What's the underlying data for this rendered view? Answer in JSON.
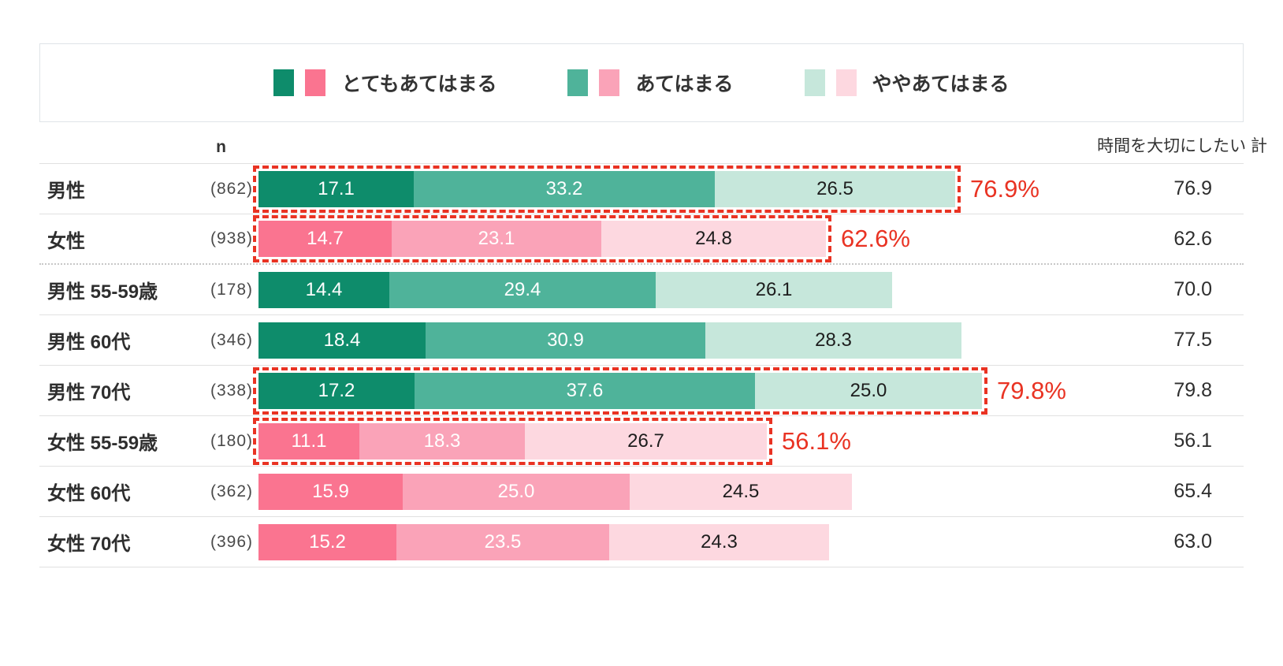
{
  "colors": {
    "green": [
      "#0E8C6B",
      "#4FB39A",
      "#C6E7DB"
    ],
    "pink": [
      "#FA7490",
      "#FAA3B8",
      "#FDD8E0"
    ],
    "highlight_red": "#E93323"
  },
  "legend": {
    "items": [
      {
        "label": "とてもあてはまる"
      },
      {
        "label": "あてはまる"
      },
      {
        "label": "ややあてはまる"
      }
    ]
  },
  "table": {
    "n_header": "n",
    "total_header": "時間を大切にしたい 計",
    "rows": [
      {
        "label": "男性",
        "n": "(862)",
        "palette": "green",
        "values": [
          17.1,
          33.2,
          26.5
        ],
        "total": 76.9,
        "highlight_label": "76.9%"
      },
      {
        "label": "女性",
        "n": "(938)",
        "palette": "pink",
        "values": [
          14.7,
          23.1,
          24.8
        ],
        "total": 62.6,
        "highlight_label": "62.6%"
      },
      {
        "label": "男性 55-59歳",
        "n": "(178)",
        "palette": "green",
        "values": [
          14.4,
          29.4,
          26.1
        ],
        "total": 70.0,
        "highlight_label": null
      },
      {
        "label": "男性 60代",
        "n": "(346)",
        "palette": "green",
        "values": [
          18.4,
          30.9,
          28.3
        ],
        "total": 77.5,
        "highlight_label": null
      },
      {
        "label": "男性 70代",
        "n": "(338)",
        "palette": "green",
        "values": [
          17.2,
          37.6,
          25.0
        ],
        "total": 79.8,
        "highlight_label": "79.8%"
      },
      {
        "label": "女性 55-59歳",
        "n": "(180)",
        "palette": "pink",
        "values": [
          11.1,
          18.3,
          26.7
        ],
        "total": 56.1,
        "highlight_label": "56.1%"
      },
      {
        "label": "女性 60代",
        "n": "(362)",
        "palette": "pink",
        "values": [
          15.9,
          25.0,
          24.5
        ],
        "total": 65.4,
        "highlight_label": null
      },
      {
        "label": "女性 70代",
        "n": "(396)",
        "palette": "pink",
        "values": [
          15.2,
          23.5,
          24.3
        ],
        "total": 63.0,
        "highlight_label": null
      }
    ]
  },
  "chart_data": {
    "type": "bar",
    "orientation": "horizontal",
    "stacked": true,
    "title": "",
    "xlabel": "",
    "ylabel": "",
    "xlim": [
      0,
      100
    ],
    "legend_position": "top",
    "categories": [
      "男性",
      "女性",
      "男性 55-59歳",
      "男性 60代",
      "男性 70代",
      "女性 55-59歳",
      "女性 60代",
      "女性 70代"
    ],
    "sample_sizes": [
      862,
      938,
      178,
      346,
      338,
      180,
      362,
      396
    ],
    "series": [
      {
        "name": "とてもあてはまる",
        "values": [
          17.1,
          14.7,
          14.4,
          18.4,
          17.2,
          11.1,
          15.9,
          15.2
        ]
      },
      {
        "name": "あてはまる",
        "values": [
          33.2,
          23.1,
          29.4,
          30.9,
          37.6,
          18.3,
          25.0,
          23.5
        ]
      },
      {
        "name": "ややあてはまる",
        "values": [
          26.5,
          24.8,
          26.1,
          28.3,
          25.0,
          26.7,
          24.5,
          24.3
        ]
      }
    ],
    "totals_label": "時間を大切にしたい 計",
    "totals": [
      76.9,
      62.6,
      70.0,
      77.5,
      79.8,
      56.1,
      65.4,
      63.0
    ],
    "highlighted_callouts": [
      "76.9%",
      "62.6%",
      "79.8%",
      "56.1%"
    ],
    "male_palette": [
      "#0E8C6B",
      "#4FB39A",
      "#C6E7DB"
    ],
    "female_palette": [
      "#FA7490",
      "#FAA3B8",
      "#FDD8E0"
    ]
  }
}
